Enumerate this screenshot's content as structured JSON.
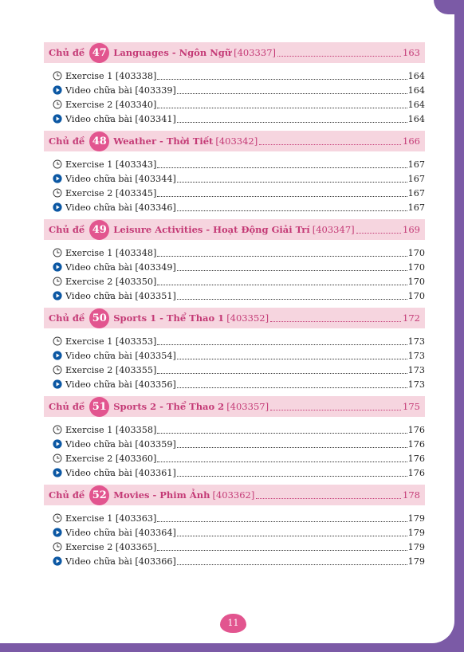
{
  "colors": {
    "frame": "#7b5aa6",
    "topic_bg": "#f6d5df",
    "accent": "#e2558f",
    "topic_text": "#c43a76",
    "video_icon": "#0b57a3"
  },
  "topic_prefix": "Chủ đề",
  "topics": [
    {
      "number": "47",
      "name": "Languages - Ngôn Ngữ",
      "code": "[403337]",
      "page": "163",
      "items": [
        {
          "icon": "clock-icon",
          "label": "Exercise 1 [403338]",
          "page": "164"
        },
        {
          "icon": "play-circle-icon",
          "label": "Video chữa bài [403339]",
          "page": "164"
        },
        {
          "icon": "clock-icon",
          "label": "Exercise 2 [403340]",
          "page": "164"
        },
        {
          "icon": "play-circle-icon",
          "label": "Video chữa bài [403341]",
          "page": "164"
        }
      ]
    },
    {
      "number": "48",
      "name": "Weather - Thời Tiết",
      "code": "[403342]",
      "page": "166",
      "items": [
        {
          "icon": "clock-icon",
          "label": "Exercise 1 [403343]",
          "page": "167"
        },
        {
          "icon": "play-circle-icon",
          "label": "Video chữa bài [403344]",
          "page": "167"
        },
        {
          "icon": "clock-icon",
          "label": "Exercise 2 [403345]",
          "page": "167"
        },
        {
          "icon": "play-circle-icon",
          "label": "Video chữa bài [403346]",
          "page": "167"
        }
      ]
    },
    {
      "number": "49",
      "name": "Leisure Activities - Hoạt Động Giải Trí",
      "code": "[403347]",
      "page": "169",
      "items": [
        {
          "icon": "clock-icon",
          "label": "Exercise 1 [403348]",
          "page": "170"
        },
        {
          "icon": "play-circle-icon",
          "label": "Video chữa bài [403349]",
          "page": "170"
        },
        {
          "icon": "clock-icon",
          "label": "Exercise 2 [403350]",
          "page": "170"
        },
        {
          "icon": "play-circle-icon",
          "label": "Video chữa bài [403351]",
          "page": "170"
        }
      ]
    },
    {
      "number": "50",
      "name": "Sports 1 - Thể Thao 1",
      "code": "[403352]",
      "page": "172",
      "items": [
        {
          "icon": "clock-icon",
          "label": "Exercise 1 [403353]",
          "page": "173"
        },
        {
          "icon": "play-circle-icon",
          "label": "Video chữa bài [403354]",
          "page": "173"
        },
        {
          "icon": "clock-icon",
          "label": "Exercise 2 [403355]",
          "page": "173"
        },
        {
          "icon": "play-circle-icon",
          "label": "Video chữa bài [403356]",
          "page": "173"
        }
      ]
    },
    {
      "number": "51",
      "name": "Sports 2 - Thể Thao 2",
      "code": "[403357]",
      "page": "175",
      "items": [
        {
          "icon": "clock-icon",
          "label": "Exercise 1 [403358]",
          "page": "176"
        },
        {
          "icon": "play-circle-icon",
          "label": "Video chữa bài [403359]",
          "page": "176"
        },
        {
          "icon": "clock-icon",
          "label": "Exercise 2 [403360]",
          "page": "176"
        },
        {
          "icon": "play-circle-icon",
          "label": "Video chữa bài [403361]",
          "page": "176"
        }
      ]
    },
    {
      "number": "52",
      "name": "Movies - Phim Ảnh",
      "code": "[403362]",
      "page": "178",
      "items": [
        {
          "icon": "clock-icon",
          "label": "Exercise 1 [403363]",
          "page": "179"
        },
        {
          "icon": "play-circle-icon",
          "label": "Video chữa bài [403364]",
          "page": "179"
        },
        {
          "icon": "clock-icon",
          "label": "Exercise 2 [403365]",
          "page": "179"
        },
        {
          "icon": "play-circle-icon",
          "label": "Video chữa bài [403366]",
          "page": "179"
        }
      ]
    }
  ],
  "page_number": "11"
}
